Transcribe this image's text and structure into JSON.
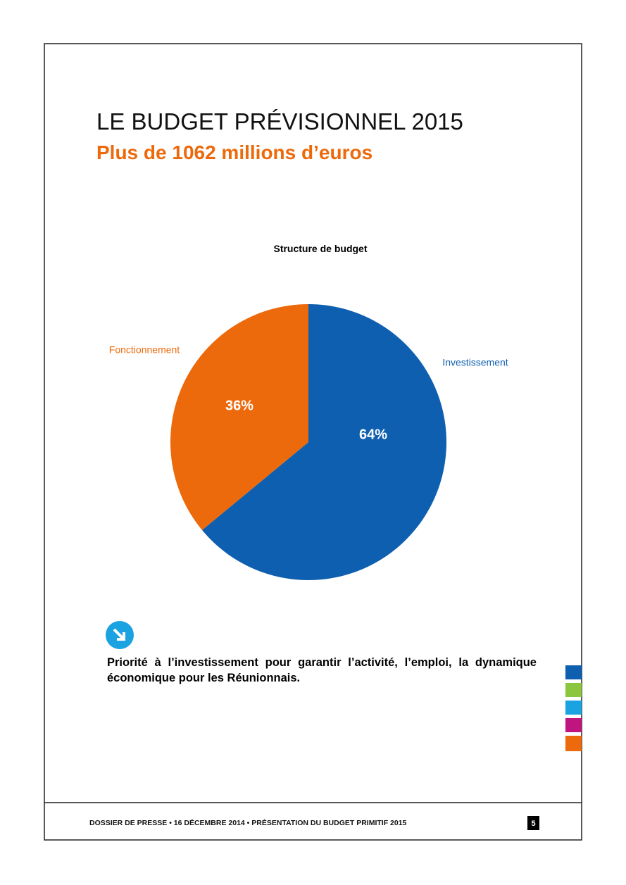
{
  "header": {
    "title": "LE BUDGET PRÉVISIONNEL 2015",
    "subtitle": "Plus de 1062 millions d’euros"
  },
  "chart_data": {
    "type": "pie",
    "title": "Structure de budget",
    "categories": [
      "Investissement",
      "Fonctionnement"
    ],
    "values": [
      64,
      36
    ],
    "value_labels": [
      "64%",
      "36%"
    ],
    "colors": [
      "#0f5fb0",
      "#ec6a0c"
    ]
  },
  "body": {
    "text": "Priorité à l’investissement pour garantir l’activité, l’emploi, la dynamique économique pour les Réunionnais."
  },
  "footer": {
    "text": "DOSSIER DE PRESSE • 16 DÉCEMBRE 2014 • PRÉSENTATION DU BUDGET PRIMITIF 2015",
    "page": "5"
  }
}
